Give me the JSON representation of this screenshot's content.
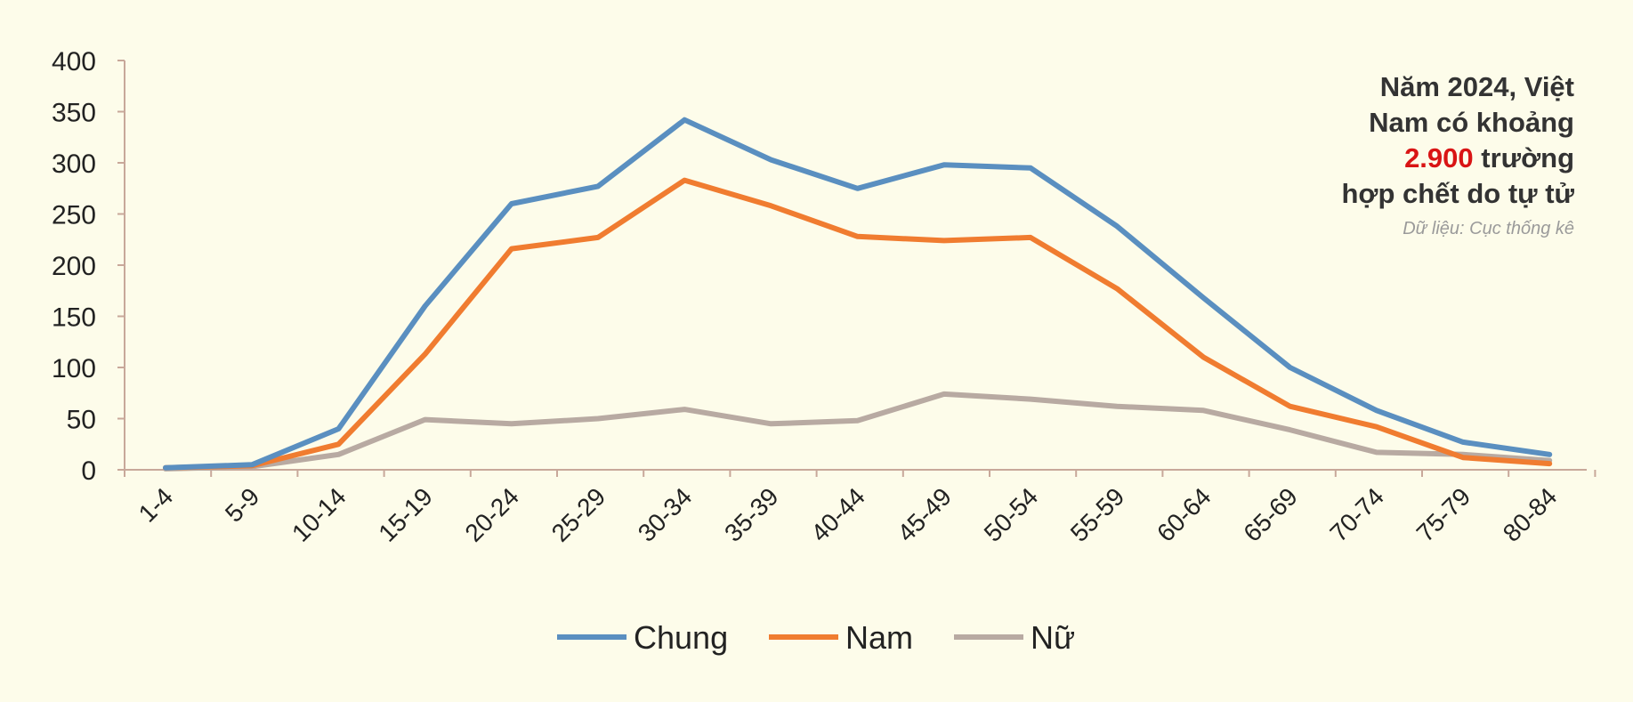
{
  "chart_data": {
    "type": "line",
    "categories": [
      "1-4",
      "5-9",
      "10-14",
      "15-19",
      "20-24",
      "25-29",
      "30-34",
      "35-39",
      "40-44",
      "45-49",
      "50-54",
      "55-59",
      "60-64",
      "65-69",
      "70-74",
      "75-79",
      "80-84"
    ],
    "series": [
      {
        "name": "Chung",
        "color": "#5a8fc0",
        "values": [
          2,
          5,
          40,
          160,
          260,
          277,
          342,
          303,
          275,
          298,
          295,
          238,
          168,
          100,
          58,
          27,
          15
        ]
      },
      {
        "name": "Nam",
        "color": "#f07c30",
        "values": [
          2,
          4,
          25,
          113,
          216,
          227,
          283,
          258,
          228,
          224,
          227,
          177,
          110,
          62,
          42,
          12,
          6
        ]
      },
      {
        "name": "Nữ",
        "color": "#b8aaa2",
        "values": [
          1,
          3,
          15,
          49,
          45,
          50,
          59,
          45,
          48,
          74,
          69,
          62,
          58,
          39,
          17,
          15,
          9
        ]
      }
    ],
    "yticks": [
      0,
      50,
      100,
      150,
      200,
      250,
      300,
      350,
      400
    ],
    "ylim": [
      0,
      400
    ],
    "legend_position": "bottom",
    "grid": false
  },
  "annotation": {
    "line1": "Năm 2024, Việt",
    "line2": "Nam có khoảng",
    "highlight": "2.900",
    "line3_rest": " trường",
    "line4": "hợp chết do tự tử",
    "source": "Dữ liệu: Cục thống kê"
  }
}
